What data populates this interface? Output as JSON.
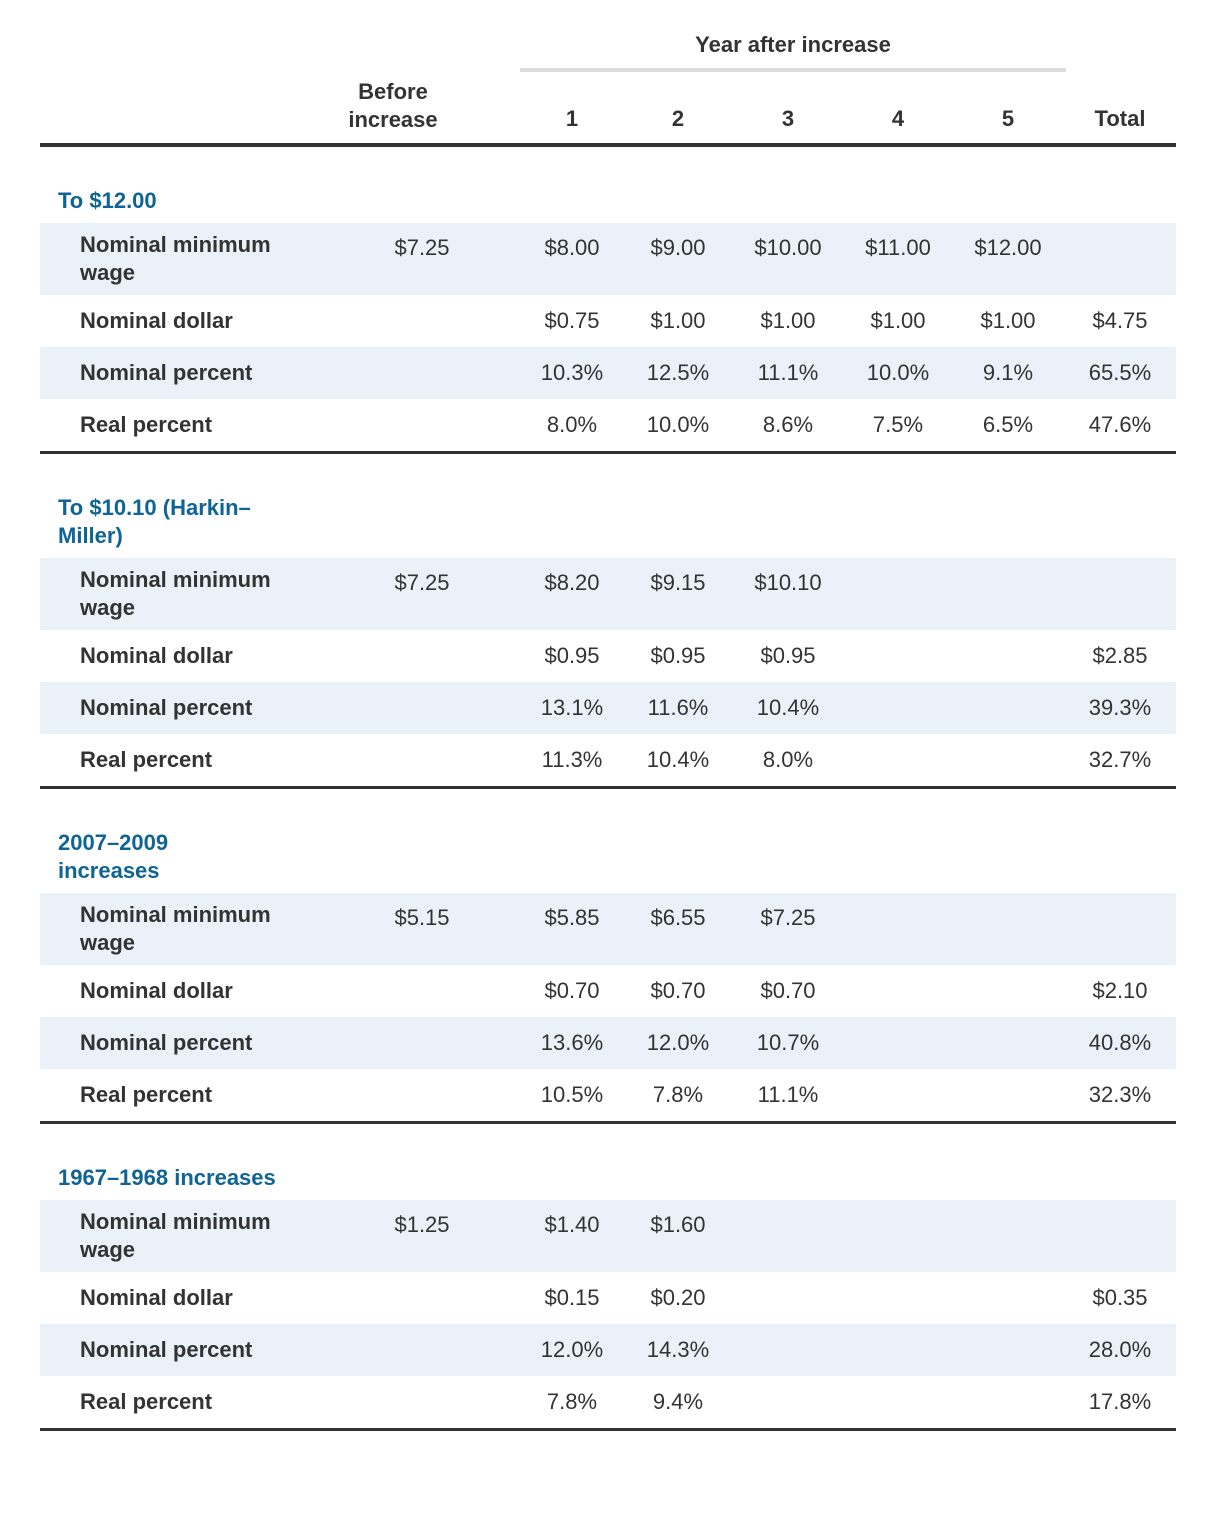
{
  "colors": {
    "heading_blue": "#0f6496",
    "row_shade": "#eaf1f9",
    "text": "#333333",
    "rule": "#333333",
    "group_rule": "#dddddd"
  },
  "header": {
    "group_label": "Year after increase",
    "before_label": "Before\nincrease",
    "columns": [
      "1",
      "2",
      "3",
      "4",
      "5"
    ],
    "total_label": "Total"
  },
  "sections": [
    {
      "title": "To $12.00",
      "rows": [
        {
          "label": "Nominal minimum wage",
          "before": "$7.25",
          "years": [
            "$8.00",
            "$9.00",
            "$10.00",
            "$11.00",
            "$12.00"
          ],
          "total": ""
        },
        {
          "label": "Nominal dollar",
          "before": "",
          "years": [
            "$0.75",
            "$1.00",
            "$1.00",
            "$1.00",
            "$1.00"
          ],
          "total": "$4.75"
        },
        {
          "label": "Nominal percent",
          "before": "",
          "years": [
            "10.3%",
            "12.5%",
            "11.1%",
            "10.0%",
            "9.1%"
          ],
          "total": "65.5%"
        },
        {
          "label": "Real percent",
          "before": "",
          "years": [
            "8.0%",
            "10.0%",
            "8.6%",
            "7.5%",
            "6.5%"
          ],
          "total": "47.6%"
        }
      ]
    },
    {
      "title": "To $10.10 (Harkin–\nMiller)",
      "rows": [
        {
          "label": "Nominal minimum wage",
          "before": "$7.25",
          "years": [
            "$8.20",
            "$9.15",
            "$10.10",
            "",
            ""
          ],
          "total": ""
        },
        {
          "label": "Nominal dollar",
          "before": "",
          "years": [
            "$0.95",
            "$0.95",
            "$0.95",
            "",
            ""
          ],
          "total": "$2.85"
        },
        {
          "label": "Nominal percent",
          "before": "",
          "years": [
            "13.1%",
            "11.6%",
            "10.4%",
            "",
            ""
          ],
          "total": "39.3%"
        },
        {
          "label": "Real percent",
          "before": "",
          "years": [
            "11.3%",
            "10.4%",
            "8.0%",
            "",
            ""
          ],
          "total": "32.7%"
        }
      ]
    },
    {
      "title": "2007–2009\nincreases",
      "rows": [
        {
          "label": "Nominal minimum wage",
          "before": "$5.15",
          "years": [
            "$5.85",
            "$6.55",
            "$7.25",
            "",
            ""
          ],
          "total": ""
        },
        {
          "label": "Nominal dollar",
          "before": "",
          "years": [
            "$0.70",
            "$0.70",
            "$0.70",
            "",
            ""
          ],
          "total": "$2.10"
        },
        {
          "label": "Nominal percent",
          "before": "",
          "years": [
            "13.6%",
            "12.0%",
            "10.7%",
            "",
            ""
          ],
          "total": "40.8%"
        },
        {
          "label": "Real percent",
          "before": "",
          "years": [
            "10.5%",
            "7.8%",
            "11.1%",
            "",
            ""
          ],
          "total": "32.3%"
        }
      ]
    },
    {
      "title": "1967–1968 increases",
      "rows": [
        {
          "label": "Nominal minimum wage",
          "before": "$1.25",
          "years": [
            "$1.40",
            "$1.60",
            "",
            "",
            ""
          ],
          "total": ""
        },
        {
          "label": "Nominal dollar",
          "before": "",
          "years": [
            "$0.15",
            "$0.20",
            "",
            "",
            ""
          ],
          "total": "$0.35"
        },
        {
          "label": "Nominal percent",
          "before": "",
          "years": [
            "12.0%",
            "14.3%",
            "",
            "",
            ""
          ],
          "total": "28.0%"
        },
        {
          "label": "Real percent",
          "before": "",
          "years": [
            "7.8%",
            "9.4%",
            "",
            "",
            ""
          ],
          "total": "17.8%"
        }
      ]
    }
  ]
}
